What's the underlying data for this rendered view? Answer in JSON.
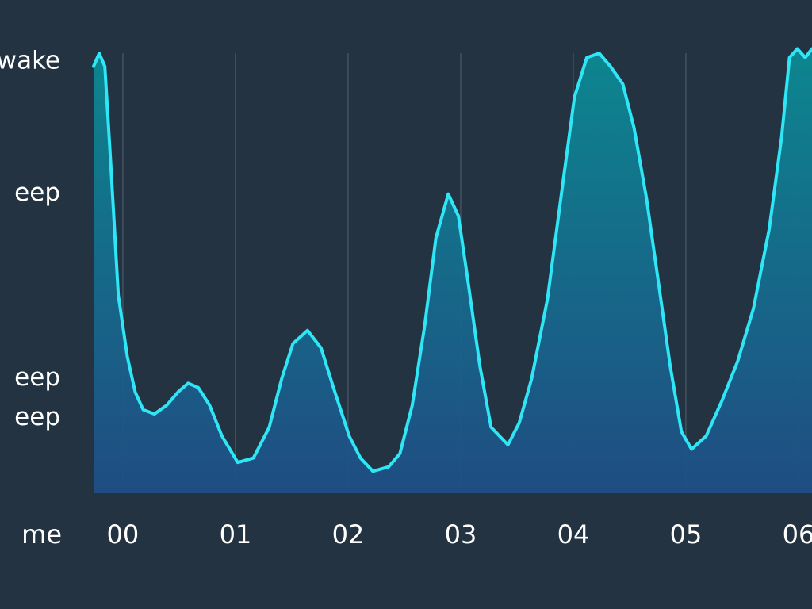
{
  "chart_data": {
    "type": "area",
    "xlabel": "me",
    "line_color": "#2ee6f5",
    "fill_top_color": "#0b8a93",
    "fill_bottom_color": "#1f4e86",
    "grid": true,
    "xlim": [
      -0.26,
      6.12
    ],
    "ylim": [
      0,
      102
    ],
    "xticks": [
      {
        "value": 0,
        "label": "00"
      },
      {
        "value": 1,
        "label": "01"
      },
      {
        "value": 2,
        "label": "02"
      },
      {
        "value": 3,
        "label": "03"
      },
      {
        "value": 4,
        "label": "04"
      },
      {
        "value": 5,
        "label": "05"
      },
      {
        "value": 6,
        "label": "06"
      }
    ],
    "yticks": [
      {
        "value": 98,
        "label": "wake"
      },
      {
        "value": 68,
        "label": "eep"
      },
      {
        "value": 26,
        "label": "eep"
      },
      {
        "value": 17,
        "label": "eep"
      }
    ],
    "x": [
      -0.26,
      -0.21,
      -0.16,
      -0.11,
      -0.04,
      0.04,
      0.11,
      0.18,
      0.28,
      0.39,
      0.49,
      0.58,
      0.67,
      0.77,
      0.88,
      1.02,
      1.16,
      1.3,
      1.41,
      1.51,
      1.64,
      1.76,
      1.87,
      2.01,
      2.11,
      2.22,
      2.36,
      2.46,
      2.57,
      2.68,
      2.78,
      2.89,
      2.98,
      3.06,
      3.17,
      3.27,
      3.42,
      3.52,
      3.63,
      3.77,
      3.91,
      4.01,
      4.12,
      4.23,
      4.33,
      4.44,
      4.54,
      4.65,
      4.75,
      4.86,
      4.96,
      5.05,
      5.18,
      5.32,
      5.46,
      5.6,
      5.74,
      5.85,
      5.92,
      5.99,
      6.06,
      6.12
    ],
    "values": [
      97,
      100,
      97,
      76,
      45,
      31,
      23,
      19,
      18,
      20,
      23,
      25,
      24,
      20,
      13,
      7,
      8,
      15,
      26,
      34,
      37,
      33,
      24,
      13,
      8,
      5,
      6,
      9,
      20,
      38,
      58,
      68,
      63,
      49,
      29,
      15,
      11,
      16,
      26,
      44,
      71,
      90,
      99,
      100,
      97,
      93,
      83,
      67,
      49,
      29,
      14,
      10,
      13,
      21,
      30,
      42,
      60,
      81,
      99,
      101,
      99,
      101
    ]
  }
}
